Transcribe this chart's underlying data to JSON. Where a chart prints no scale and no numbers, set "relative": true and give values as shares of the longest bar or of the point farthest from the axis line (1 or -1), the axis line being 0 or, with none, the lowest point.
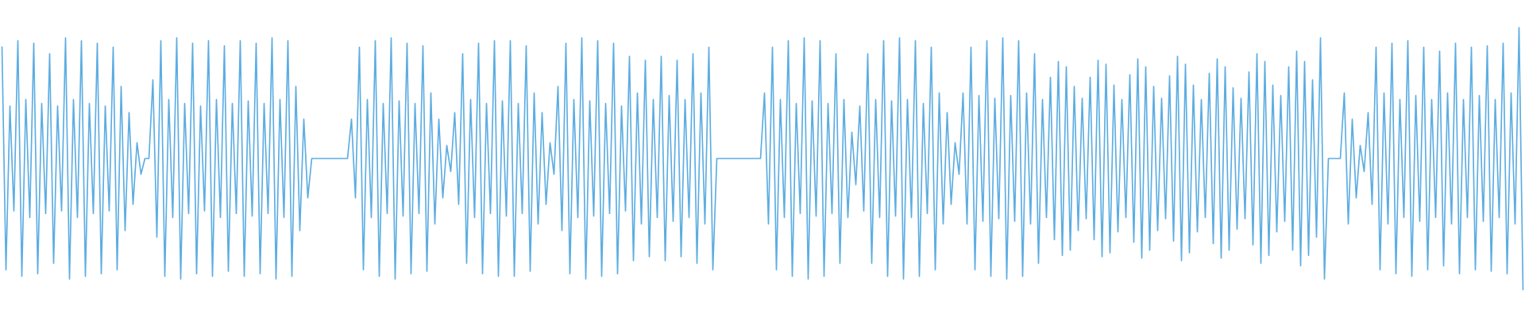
{
  "chart_data": {
    "type": "line",
    "relative": true,
    "color": "#5dade2",
    "marker": "none",
    "line_style": "solid",
    "categories": [
      null,
      null,
      null,
      null,
      null,
      null,
      null,
      null,
      null,
      null,
      null,
      null,
      null,
      null,
      null,
      null,
      null,
      null,
      null,
      null,
      null,
      null,
      null,
      null,
      null,
      null,
      null,
      null,
      null,
      null,
      null,
      null,
      null,
      null,
      null,
      null,
      null,
      null,
      null,
      null,
      null,
      null,
      null,
      null,
      null,
      null,
      null,
      null,
      null,
      null,
      null,
      null,
      null,
      null,
      null,
      null,
      null,
      null,
      null,
      null,
      null,
      null,
      null,
      null,
      null,
      null,
      null,
      null,
      null,
      null,
      null,
      null,
      null,
      null,
      null,
      null,
      null,
      null,
      null,
      null,
      null,
      null,
      null,
      null,
      null,
      null,
      null,
      null,
      null,
      null,
      null,
      null,
      null,
      null,
      null,
      null,
      null,
      null,
      null,
      null,
      null,
      null,
      null,
      null,
      null,
      null,
      null,
      null,
      null,
      null,
      null,
      null,
      null,
      null,
      null,
      null,
      null,
      null,
      null,
      null,
      null,
      null,
      null,
      null,
      null,
      null,
      null,
      null,
      null,
      null,
      null,
      null,
      null,
      null,
      null,
      null,
      null,
      null,
      null,
      null,
      null,
      null,
      null,
      null,
      null,
      null,
      null,
      null,
      null,
      null,
      null,
      null,
      null,
      null,
      null,
      null,
      null,
      null,
      null,
      null,
      null,
      null,
      null,
      null,
      null,
      null,
      null,
      null,
      null,
      null,
      null,
      null,
      null,
      null,
      null,
      null,
      null,
      null,
      null,
      null,
      null,
      null,
      null,
      null,
      null,
      null,
      null,
      null,
      null,
      null,
      null,
      null,
      null,
      null,
      null,
      null,
      null,
      null,
      null,
      null,
      null,
      null,
      null,
      null,
      null,
      null,
      null,
      null,
      null,
      null,
      null,
      null,
      null,
      null,
      null,
      null,
      null,
      null,
      null,
      null,
      null,
      null,
      null,
      null,
      null,
      null,
      null,
      null,
      null,
      null,
      null,
      null,
      null,
      null,
      null,
      null,
      null,
      null,
      null,
      null,
      null,
      null,
      null,
      null,
      null,
      null,
      null,
      null,
      null,
      null,
      null,
      null,
      null,
      null,
      null,
      null,
      null,
      null,
      null,
      null,
      null,
      null,
      null,
      null,
      null,
      null,
      null,
      null,
      null,
      null,
      null,
      null,
      null,
      null,
      null,
      null,
      null,
      null,
      null,
      null,
      null,
      null,
      null,
      null,
      null,
      null,
      null,
      null,
      null,
      null,
      null,
      null,
      null,
      null,
      null,
      null,
      null,
      null,
      null,
      null,
      null,
      null,
      null,
      null,
      null,
      null,
      null,
      null,
      null,
      null,
      null,
      null,
      null,
      null,
      null,
      null,
      null,
      null,
      null,
      null,
      null,
      null,
      null,
      null,
      null,
      null,
      null,
      null,
      null,
      null,
      null,
      null,
      null,
      null,
      null,
      null,
      null,
      null,
      null,
      null,
      null,
      null,
      null,
      null,
      null,
      null,
      null,
      null,
      null,
      null,
      null,
      null,
      null,
      null,
      null,
      null,
      null,
      null,
      null,
      null,
      null,
      null,
      null,
      null,
      null,
      null,
      null,
      null,
      null,
      null,
      null,
      null,
      null,
      null,
      null,
      null,
      null,
      null,
      null,
      null,
      null,
      null,
      null,
      null
    ],
    "values": [
      0.925,
      0.075,
      0.7,
      0.3,
      0.95,
      0.05,
      0.725,
      0.275,
      0.94,
      0.06,
      0.71,
      0.29,
      0.9,
      0.1,
      0.7,
      0.3,
      0.96,
      0.04,
      0.725,
      0.275,
      0.95,
      0.05,
      0.71,
      0.29,
      0.94,
      0.06,
      0.7,
      0.3,
      0.925,
      0.075,
      0.775,
      0.225,
      0.675,
      0.325,
      0.56,
      0.44,
      0.5,
      0.5,
      0.8,
      0.2,
      0.95,
      0.05,
      0.725,
      0.275,
      0.96,
      0.04,
      0.71,
      0.29,
      0.94,
      0.06,
      0.7,
      0.3,
      0.95,
      0.05,
      0.725,
      0.275,
      0.93,
      0.07,
      0.71,
      0.29,
      0.95,
      0.05,
      0.72,
      0.28,
      0.94,
      0.06,
      0.71,
      0.29,
      0.96,
      0.04,
      0.725,
      0.275,
      0.95,
      0.05,
      0.775,
      0.225,
      0.65,
      0.35,
      0.5,
      0.5,
      0.5,
      0.5,
      0.5,
      0.5,
      0.5,
      0.5,
      0.5,
      0.5,
      0.65,
      0.35,
      0.925,
      0.075,
      0.725,
      0.275,
      0.95,
      0.05,
      0.71,
      0.29,
      0.96,
      0.04,
      0.72,
      0.28,
      0.94,
      0.06,
      0.71,
      0.29,
      0.93,
      0.07,
      0.75,
      0.25,
      0.65,
      0.35,
      0.55,
      0.45,
      0.675,
      0.325,
      0.9,
      0.1,
      0.725,
      0.275,
      0.94,
      0.06,
      0.71,
      0.29,
      0.95,
      0.05,
      0.72,
      0.28,
      0.95,
      0.05,
      0.71,
      0.29,
      0.93,
      0.07,
      0.75,
      0.25,
      0.675,
      0.325,
      0.56,
      0.44,
      0.775,
      0.225,
      0.94,
      0.06,
      0.725,
      0.275,
      0.96,
      0.04,
      0.72,
      0.28,
      0.95,
      0.05,
      0.71,
      0.29,
      0.94,
      0.06,
      0.7,
      0.3,
      0.89,
      0.11,
      0.75,
      0.25,
      0.875,
      0.125,
      0.725,
      0.275,
      0.89,
      0.11,
      0.74,
      0.26,
      0.875,
      0.125,
      0.725,
      0.275,
      0.9,
      0.1,
      0.75,
      0.25,
      0.925,
      0.075,
      0.5,
      0.5,
      0.5,
      0.5,
      0.5,
      0.5,
      0.5,
      0.5,
      0.5,
      0.5,
      0.5,
      0.5,
      0.75,
      0.25,
      0.925,
      0.075,
      0.725,
      0.275,
      0.95,
      0.05,
      0.71,
      0.29,
      0.96,
      0.04,
      0.72,
      0.28,
      0.95,
      0.05,
      0.71,
      0.29,
      0.9,
      0.1,
      0.725,
      0.275,
      0.6,
      0.4,
      0.7,
      0.3,
      0.9,
      0.1,
      0.725,
      0.275,
      0.95,
      0.05,
      0.72,
      0.28,
      0.96,
      0.04,
      0.725,
      0.275,
      0.95,
      0.05,
      0.71,
      0.29,
      0.925,
      0.075,
      0.75,
      0.25,
      0.675,
      0.325,
      0.56,
      0.44,
      0.75,
      0.25,
      0.925,
      0.075,
      0.74,
      0.26,
      0.95,
      0.05,
      0.73,
      0.27,
      0.96,
      0.04,
      0.74,
      0.26,
      0.95,
      0.05,
      0.75,
      0.25,
      0.9,
      0.1,
      0.725,
      0.275,
      0.81,
      0.19,
      0.87,
      0.13,
      0.85,
      0.15,
      0.775,
      0.225,
      0.73,
      0.27,
      0.81,
      0.19,
      0.875,
      0.125,
      0.86,
      0.14,
      0.78,
      0.22,
      0.725,
      0.275,
      0.82,
      0.18,
      0.88,
      0.12,
      0.85,
      0.15,
      0.775,
      0.225,
      0.73,
      0.27,
      0.815,
      0.185,
      0.89,
      0.11,
      0.86,
      0.14,
      0.78,
      0.22,
      0.725,
      0.275,
      0.825,
      0.175,
      0.88,
      0.12,
      0.85,
      0.15,
      0.77,
      0.23,
      0.73,
      0.27,
      0.83,
      0.17,
      0.9,
      0.1,
      0.87,
      0.13,
      0.78,
      0.22,
      0.74,
      0.26,
      0.85,
      0.15,
      0.91,
      0.09,
      0.87,
      0.13,
      0.8,
      0.2,
      0.96,
      0.04,
      0.5,
      0.5,
      0.5,
      0.5,
      0.75,
      0.25,
      0.65,
      0.35,
      0.55,
      0.45,
      0.675,
      0.325,
      0.925,
      0.075,
      0.75,
      0.25,
      0.94,
      0.06,
      0.725,
      0.275,
      0.95,
      0.05,
      0.74,
      0.26,
      0.925,
      0.075,
      0.725,
      0.275,
      0.91,
      0.09,
      0.75,
      0.25,
      0.94,
      0.06,
      0.725,
      0.275,
      0.925,
      0.075,
      0.74,
      0.26,
      0.93,
      0.07,
      0.725,
      0.275,
      0.94,
      0.06,
      0.75,
      0.25,
      1,
      0
    ]
  }
}
